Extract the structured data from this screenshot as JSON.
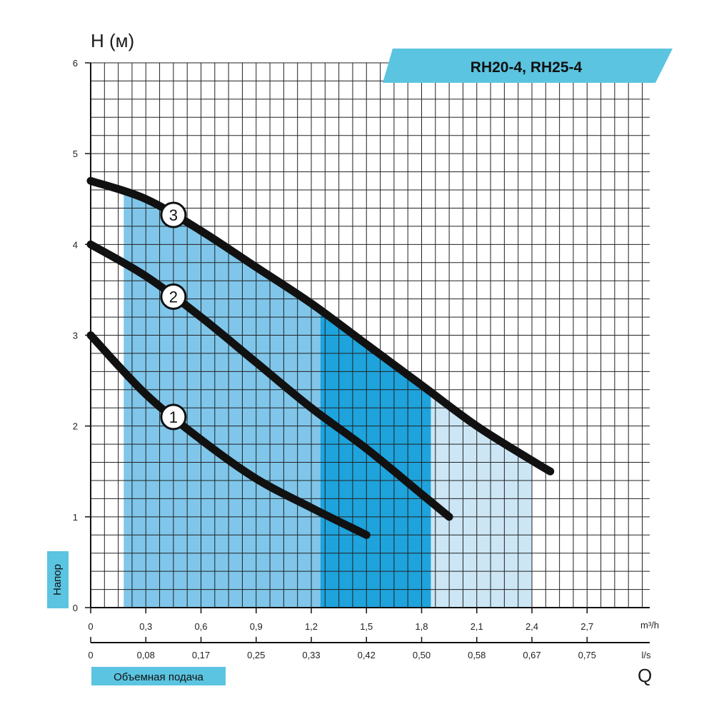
{
  "chart_data": {
    "type": "line",
    "title": "RH20-4, RH25-4",
    "ylabel": "H (м)",
    "y_side_label": "Напор",
    "xlabel": "Объемная подача",
    "x_symbol": "Q",
    "x_unit": "m³/h",
    "x2_unit": "l/s",
    "xlim": [
      0,
      3.0
    ],
    "ylim": [
      0,
      6
    ],
    "grid": true,
    "x_ticks": [
      "0",
      "0,3",
      "0,6",
      "0,9",
      "1,2",
      "1,5",
      "1,8",
      "2,1",
      "2,4",
      "2,7"
    ],
    "x_tick_values": [
      0,
      0.3,
      0.6,
      0.9,
      1.2,
      1.5,
      1.8,
      2.1,
      2.4,
      2.7
    ],
    "x2_ticks": [
      "0",
      "0,08",
      "0,17",
      "0,25",
      "0,33",
      "0,42",
      "0,50",
      "0,58",
      "0,67",
      "0,75"
    ],
    "y_ticks": [
      "0",
      "1",
      "2",
      "3",
      "4",
      "5",
      "6"
    ],
    "y_tick_values": [
      0,
      1,
      2,
      3,
      4,
      5,
      6
    ],
    "series": [
      {
        "name": "1",
        "x": [
          0,
          0.3,
          0.6,
          0.9,
          1.2,
          1.5
        ],
        "y": [
          3.0,
          2.35,
          1.85,
          1.42,
          1.1,
          0.8
        ]
      },
      {
        "name": "2",
        "x": [
          0,
          0.3,
          0.6,
          0.9,
          1.2,
          1.5,
          1.8,
          1.95
        ],
        "y": [
          4.0,
          3.65,
          3.2,
          2.7,
          2.2,
          1.75,
          1.25,
          1.0
        ]
      },
      {
        "name": "3",
        "x": [
          0,
          0.3,
          0.6,
          0.9,
          1.2,
          1.5,
          1.8,
          2.1,
          2.4,
          2.5
        ],
        "y": [
          4.7,
          4.5,
          4.15,
          3.75,
          3.35,
          2.9,
          2.45,
          2.0,
          1.62,
          1.5
        ]
      }
    ],
    "marker_positions": [
      0.45,
      0.45,
      0.45
    ],
    "shaded_regions": [
      {
        "x": [
          0.18,
          2.4
        ],
        "color": "#cce6f5"
      },
      {
        "x": [
          0.18,
          1.85
        ],
        "color": "#7fc6ea"
      },
      {
        "x": [
          1.25,
          1.85
        ],
        "color": "#1ea3dc"
      }
    ],
    "colors": {
      "curve": "#111111",
      "grid": "#222222",
      "banner": "#5bc4e0",
      "label_box": "#5bc4e0",
      "fill_light": "#cce6f5",
      "fill_mid": "#7fc6ea",
      "fill_dark": "#1ea3dc"
    }
  }
}
